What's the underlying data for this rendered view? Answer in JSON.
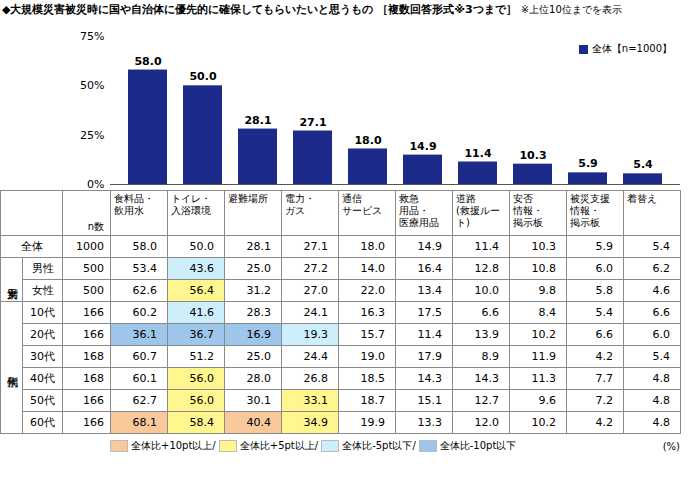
{
  "chart_data": {
    "type": "bar",
    "title": "◆大規模災害被災時に国や自治体に優先的に確保してもらいたいと思うもの ［複数回答形式※3つまで］",
    "subtitle": "※上位10位までを表示",
    "categories": [
      "食料品・\n飲用水",
      "トイレ・\n入浴環境",
      "避難場所",
      "電力・\nガス",
      "通信\nサービス",
      "救急\n用品・\n医療用品",
      "道路\n(救援ルート)",
      "安否\n情報・\n掲示板",
      "被災支援\n情報・\n掲示板",
      "着替え"
    ],
    "series": [
      {
        "name": "全体【n=1000】",
        "color": "#1c2a8a",
        "values": [
          58.0,
          50.0,
          28.1,
          27.1,
          18.0,
          14.9,
          11.4,
          10.3,
          5.9,
          5.4
        ],
        "value_labels": [
          "58.0",
          "50.0",
          "28.1",
          "27.1",
          "18.0",
          "14.9",
          "11.4",
          "10.3",
          "5.9",
          "5.4"
        ]
      }
    ],
    "ylim": [
      0,
      75
    ],
    "yticks": [
      {
        "value": 0,
        "label": "0%"
      },
      {
        "value": 25,
        "label": "25%"
      },
      {
        "value": 50,
        "label": "50%"
      },
      {
        "value": 75,
        "label": "75%"
      }
    ],
    "grid": false,
    "legend": "top-right",
    "data_labels": true,
    "tick_labels": "y"
  },
  "table": {
    "n_header": "n数",
    "total": {
      "label": "全体",
      "n": "1000",
      "values": [
        "58.0",
        "50.0",
        "28.1",
        "27.1",
        "18.0",
        "14.9",
        "11.4",
        "10.3",
        "5.9",
        "5.4"
      ],
      "colors": [
        null,
        null,
        null,
        null,
        null,
        null,
        null,
        null,
        null,
        null
      ]
    },
    "groups": [
      {
        "label": "男女別",
        "rows": [
          {
            "label": "男性",
            "n": "500",
            "values": [
              "53.4",
              "43.6",
              "25.0",
              "27.2",
              "14.0",
              "16.4",
              "12.8",
              "10.8",
              "6.0",
              "6.2"
            ],
            "colors": [
              null,
              "#cdeffb",
              null,
              null,
              null,
              null,
              null,
              null,
              null,
              null
            ]
          },
          {
            "label": "女性",
            "n": "500",
            "values": [
              "62.6",
              "56.4",
              "31.2",
              "27.0",
              "22.0",
              "13.4",
              "10.0",
              "9.8",
              "5.8",
              "4.6"
            ],
            "colors": [
              null,
              "#fff68f",
              null,
              null,
              null,
              null,
              null,
              null,
              null,
              null
            ]
          }
        ]
      },
      {
        "label": "年代別",
        "rows": [
          {
            "label": "10代",
            "n": "166",
            "values": [
              "60.2",
              "41.6",
              "28.3",
              "24.1",
              "16.3",
              "17.5",
              "6.6",
              "8.4",
              "5.4",
              "6.6"
            ],
            "colors": [
              null,
              "#cdeffb",
              null,
              null,
              null,
              null,
              null,
              null,
              null,
              null
            ]
          },
          {
            "label": "20代",
            "n": "166",
            "values": [
              "36.1",
              "36.7",
              "16.9",
              "19.3",
              "15.7",
              "11.4",
              "13.9",
              "10.2",
              "6.6",
              "6.0"
            ],
            "colors": [
              "#9ec5ea",
              "#9ec5ea",
              "#9ec5ea",
              "#cdeffb",
              null,
              null,
              null,
              null,
              null,
              null
            ]
          },
          {
            "label": "30代",
            "n": "168",
            "values": [
              "60.7",
              "51.2",
              "25.0",
              "24.4",
              "19.0",
              "17.9",
              "8.9",
              "11.9",
              "4.2",
              "5.4"
            ],
            "colors": [
              null,
              null,
              null,
              null,
              null,
              null,
              null,
              null,
              null,
              null
            ]
          },
          {
            "label": "40代",
            "n": "168",
            "values": [
              "60.1",
              "56.0",
              "28.0",
              "26.8",
              "18.5",
              "14.3",
              "14.3",
              "11.3",
              "7.7",
              "4.8"
            ],
            "colors": [
              null,
              "#fff68f",
              null,
              null,
              null,
              null,
              null,
              null,
              null,
              null
            ]
          },
          {
            "label": "50代",
            "n": "166",
            "values": [
              "62.7",
              "56.0",
              "30.1",
              "33.1",
              "18.7",
              "15.1",
              "12.7",
              "9.6",
              "7.2",
              "4.8"
            ],
            "colors": [
              null,
              "#fff68f",
              null,
              "#fff68f",
              null,
              null,
              null,
              null,
              null,
              null
            ]
          },
          {
            "label": "60代",
            "n": "166",
            "values": [
              "68.1",
              "58.4",
              "40.4",
              "34.9",
              "19.9",
              "13.3",
              "12.0",
              "10.2",
              "4.2",
              "4.8"
            ],
            "colors": [
              "#f9c89b",
              "#fff68f",
              "#f9c89b",
              "#fff68f",
              null,
              null,
              null,
              null,
              null,
              null
            ]
          }
        ]
      }
    ],
    "highlight_legend": [
      {
        "label": "全体比+10pt以上/",
        "color": "#f9c89b"
      },
      {
        "label": "全体比+5pt以上/",
        "color": "#fff68f"
      },
      {
        "label": "全体比-5pt以下/",
        "color": "#cdeffb"
      },
      {
        "label": "全体比-10pt以下",
        "color": "#9ec5ea"
      }
    ],
    "unit": "(%)"
  }
}
